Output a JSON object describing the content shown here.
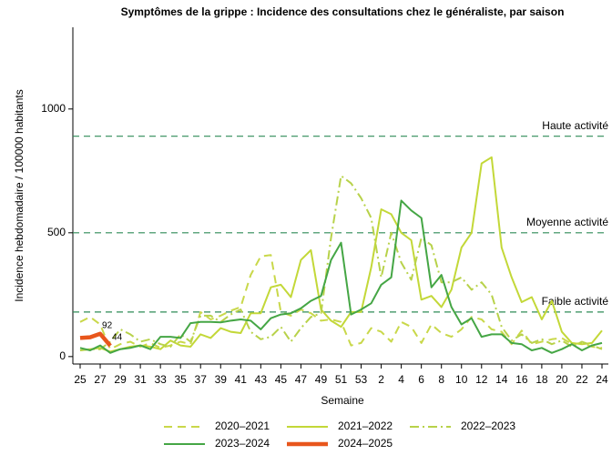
{
  "chart_data": {
    "type": "line",
    "title": "Symptômes de la grippe : Incidence des consultations chez le généraliste, par saison",
    "x_label": "Semaine",
    "y_label": "Incidence hebdomadaire / 100000 habitants",
    "categories": [
      "25",
      null,
      "27",
      null,
      "29",
      null,
      "31",
      null,
      "33",
      null,
      "35",
      null,
      "37",
      null,
      "39",
      null,
      "41",
      null,
      "43",
      null,
      "45",
      null,
      "47",
      null,
      "49",
      null,
      "51",
      null,
      "53",
      null,
      "2",
      null,
      "4",
      null,
      "6",
      null,
      "8",
      null,
      "10",
      null,
      "12",
      null,
      "14",
      null,
      "16",
      null,
      "18",
      null,
      "20",
      null,
      "22",
      null,
      "24"
    ],
    "ylim": [
      -30,
      1330
    ],
    "yticks": [
      0,
      500,
      1000
    ],
    "thresholds": [
      {
        "label": "Haute activité",
        "value": 890
      },
      {
        "label": "Moyenne activité",
        "value": 500
      },
      {
        "label": "Faible activité",
        "value": 180
      }
    ],
    "threshold_color": "#2e8b57",
    "series": [
      {
        "name": "2020–2021",
        "color": "#c9d84a",
        "line_style": "dashed",
        "width": 2,
        "values": [
          140,
          160,
          130,
          30,
          50,
          60,
          40,
          55,
          35,
          45,
          60,
          50,
          180,
          150,
          165,
          185,
          200,
          330,
          405,
          410,
          180,
          165,
          190,
          175,
          145,
          150,
          140,
          45,
          55,
          115,
          100,
          60,
          140,
          120,
          55,
          130,
          95,
          80,
          110,
          160,
          150,
          110,
          100,
          50,
          105,
          50,
          60,
          70,
          75,
          50,
          55,
          40,
          35
        ]
      },
      {
        "name": "2021–2022",
        "color": "#c3d838",
        "line_style": "solid",
        "width": 2,
        "values": [
          25,
          30,
          35,
          20,
          30,
          40,
          45,
          40,
          30,
          65,
          45,
          40,
          90,
          75,
          115,
          100,
          95,
          175,
          175,
          280,
          290,
          240,
          390,
          430,
          190,
          145,
          120,
          180,
          180,
          360,
          595,
          575,
          500,
          470,
          230,
          245,
          200,
          270,
          440,
          500,
          780,
          805,
          440,
          320,
          220,
          240,
          150,
          225,
          100,
          55,
          50,
          55,
          105
        ]
      },
      {
        "name": "2022–2023",
        "color": "#b8d24a",
        "line_style": "dashdot",
        "width": 2,
        "values": [
          25,
          30,
          30,
          60,
          110,
          90,
          60,
          70,
          50,
          40,
          90,
          60,
          165,
          165,
          140,
          170,
          190,
          100,
          70,
          80,
          120,
          60,
          115,
          160,
          175,
          480,
          730,
          700,
          640,
          560,
          320,
          500,
          380,
          310,
          480,
          450,
          300,
          300,
          320,
          270,
          300,
          250,
          120,
          65,
          90,
          55,
          70,
          50,
          65,
          40,
          60,
          45,
          30
        ]
      },
      {
        "name": "2023–2024",
        "color": "#45a645",
        "line_style": "solid",
        "width": 2,
        "values": [
          35,
          25,
          45,
          15,
          30,
          35,
          45,
          30,
          80,
          80,
          75,
          135,
          140,
          140,
          138,
          145,
          150,
          145,
          110,
          155,
          170,
          175,
          195,
          225,
          245,
          390,
          460,
          170,
          190,
          215,
          290,
          320,
          630,
          590,
          560,
          280,
          330,
          200,
          130,
          155,
          80,
          90,
          90,
          55,
          50,
          25,
          35,
          15,
          30,
          50,
          25,
          45,
          55
        ]
      },
      {
        "name": "2024–2025",
        "color": "#e8561c",
        "line_style": "solid",
        "width": 4.5,
        "values": [
          75,
          78,
          92,
          44,
          null,
          null,
          null,
          null,
          null,
          null,
          null,
          null,
          null,
          null,
          null,
          null,
          null,
          null,
          null,
          null,
          null,
          null,
          null,
          null,
          null,
          null,
          null,
          null,
          null,
          null,
          null,
          null,
          null,
          null,
          null,
          null,
          null,
          null,
          null,
          null,
          null,
          null,
          null,
          null,
          null,
          null,
          null,
          null,
          null,
          null,
          null,
          null,
          null
        ],
        "value_labels": [
          null,
          null,
          "92",
          "44",
          null,
          null,
          null,
          null,
          null,
          null,
          null,
          null,
          null,
          null,
          null,
          null,
          null,
          null,
          null,
          null,
          null,
          null,
          null,
          null,
          null,
          null,
          null,
          null,
          null,
          null,
          null,
          null,
          null,
          null,
          null,
          null,
          null,
          null,
          null,
          null,
          null,
          null,
          null,
          null,
          null,
          null,
          null,
          null,
          null,
          null,
          null,
          null,
          null
        ]
      }
    ]
  }
}
